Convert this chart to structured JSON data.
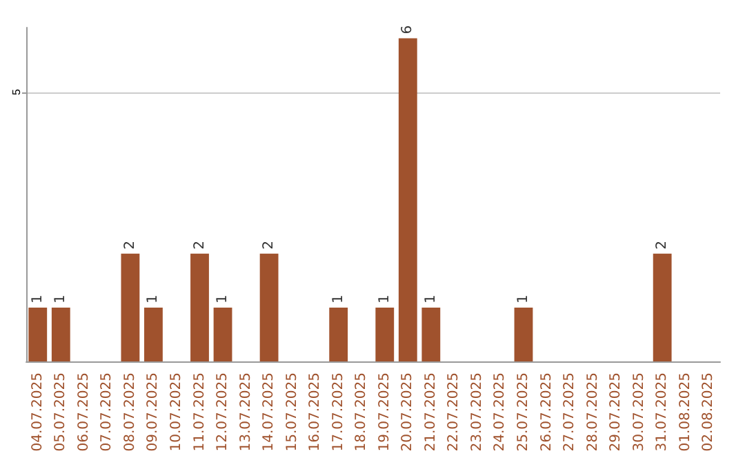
{
  "chart_data": {
    "type": "bar",
    "categories": [
      "04.07.2025",
      "05.07.2025",
      "06.07.2025",
      "07.07.2025",
      "08.07.2025",
      "09.07.2025",
      "10.07.2025",
      "11.07.2025",
      "12.07.2025",
      "13.07.2025",
      "14.07.2025",
      "15.07.2025",
      "16.07.2025",
      "17.07.2025",
      "18.07.2025",
      "19.07.2025",
      "20.07.2025",
      "21.07.2025",
      "22.07.2025",
      "23.07.2025",
      "24.07.2025",
      "25.07.2025",
      "26.07.2025",
      "27.07.2025",
      "28.07.2025",
      "29.07.2025",
      "30.07.2025",
      "31.07.2025",
      "01.08.2025",
      "02.08.2025"
    ],
    "values": [
      1,
      1,
      0,
      0,
      2,
      1,
      0,
      2,
      1,
      0,
      2,
      0,
      0,
      1,
      0,
      1,
      6,
      1,
      0,
      0,
      0,
      1,
      0,
      0,
      0,
      0,
      0,
      2,
      0,
      0
    ],
    "value_labels": [
      "1",
      "1",
      null,
      null,
      "2",
      "1",
      null,
      "2",
      "1",
      null,
      "2",
      null,
      null,
      "1",
      null,
      "1",
      "6",
      "1",
      null,
      null,
      null,
      "1",
      null,
      null,
      null,
      null,
      null,
      "2",
      null,
      null
    ],
    "color": "#a0522d",
    "ylim": [
      0,
      6.2
    ],
    "yticks": [
      5
    ],
    "grid": "y"
  }
}
